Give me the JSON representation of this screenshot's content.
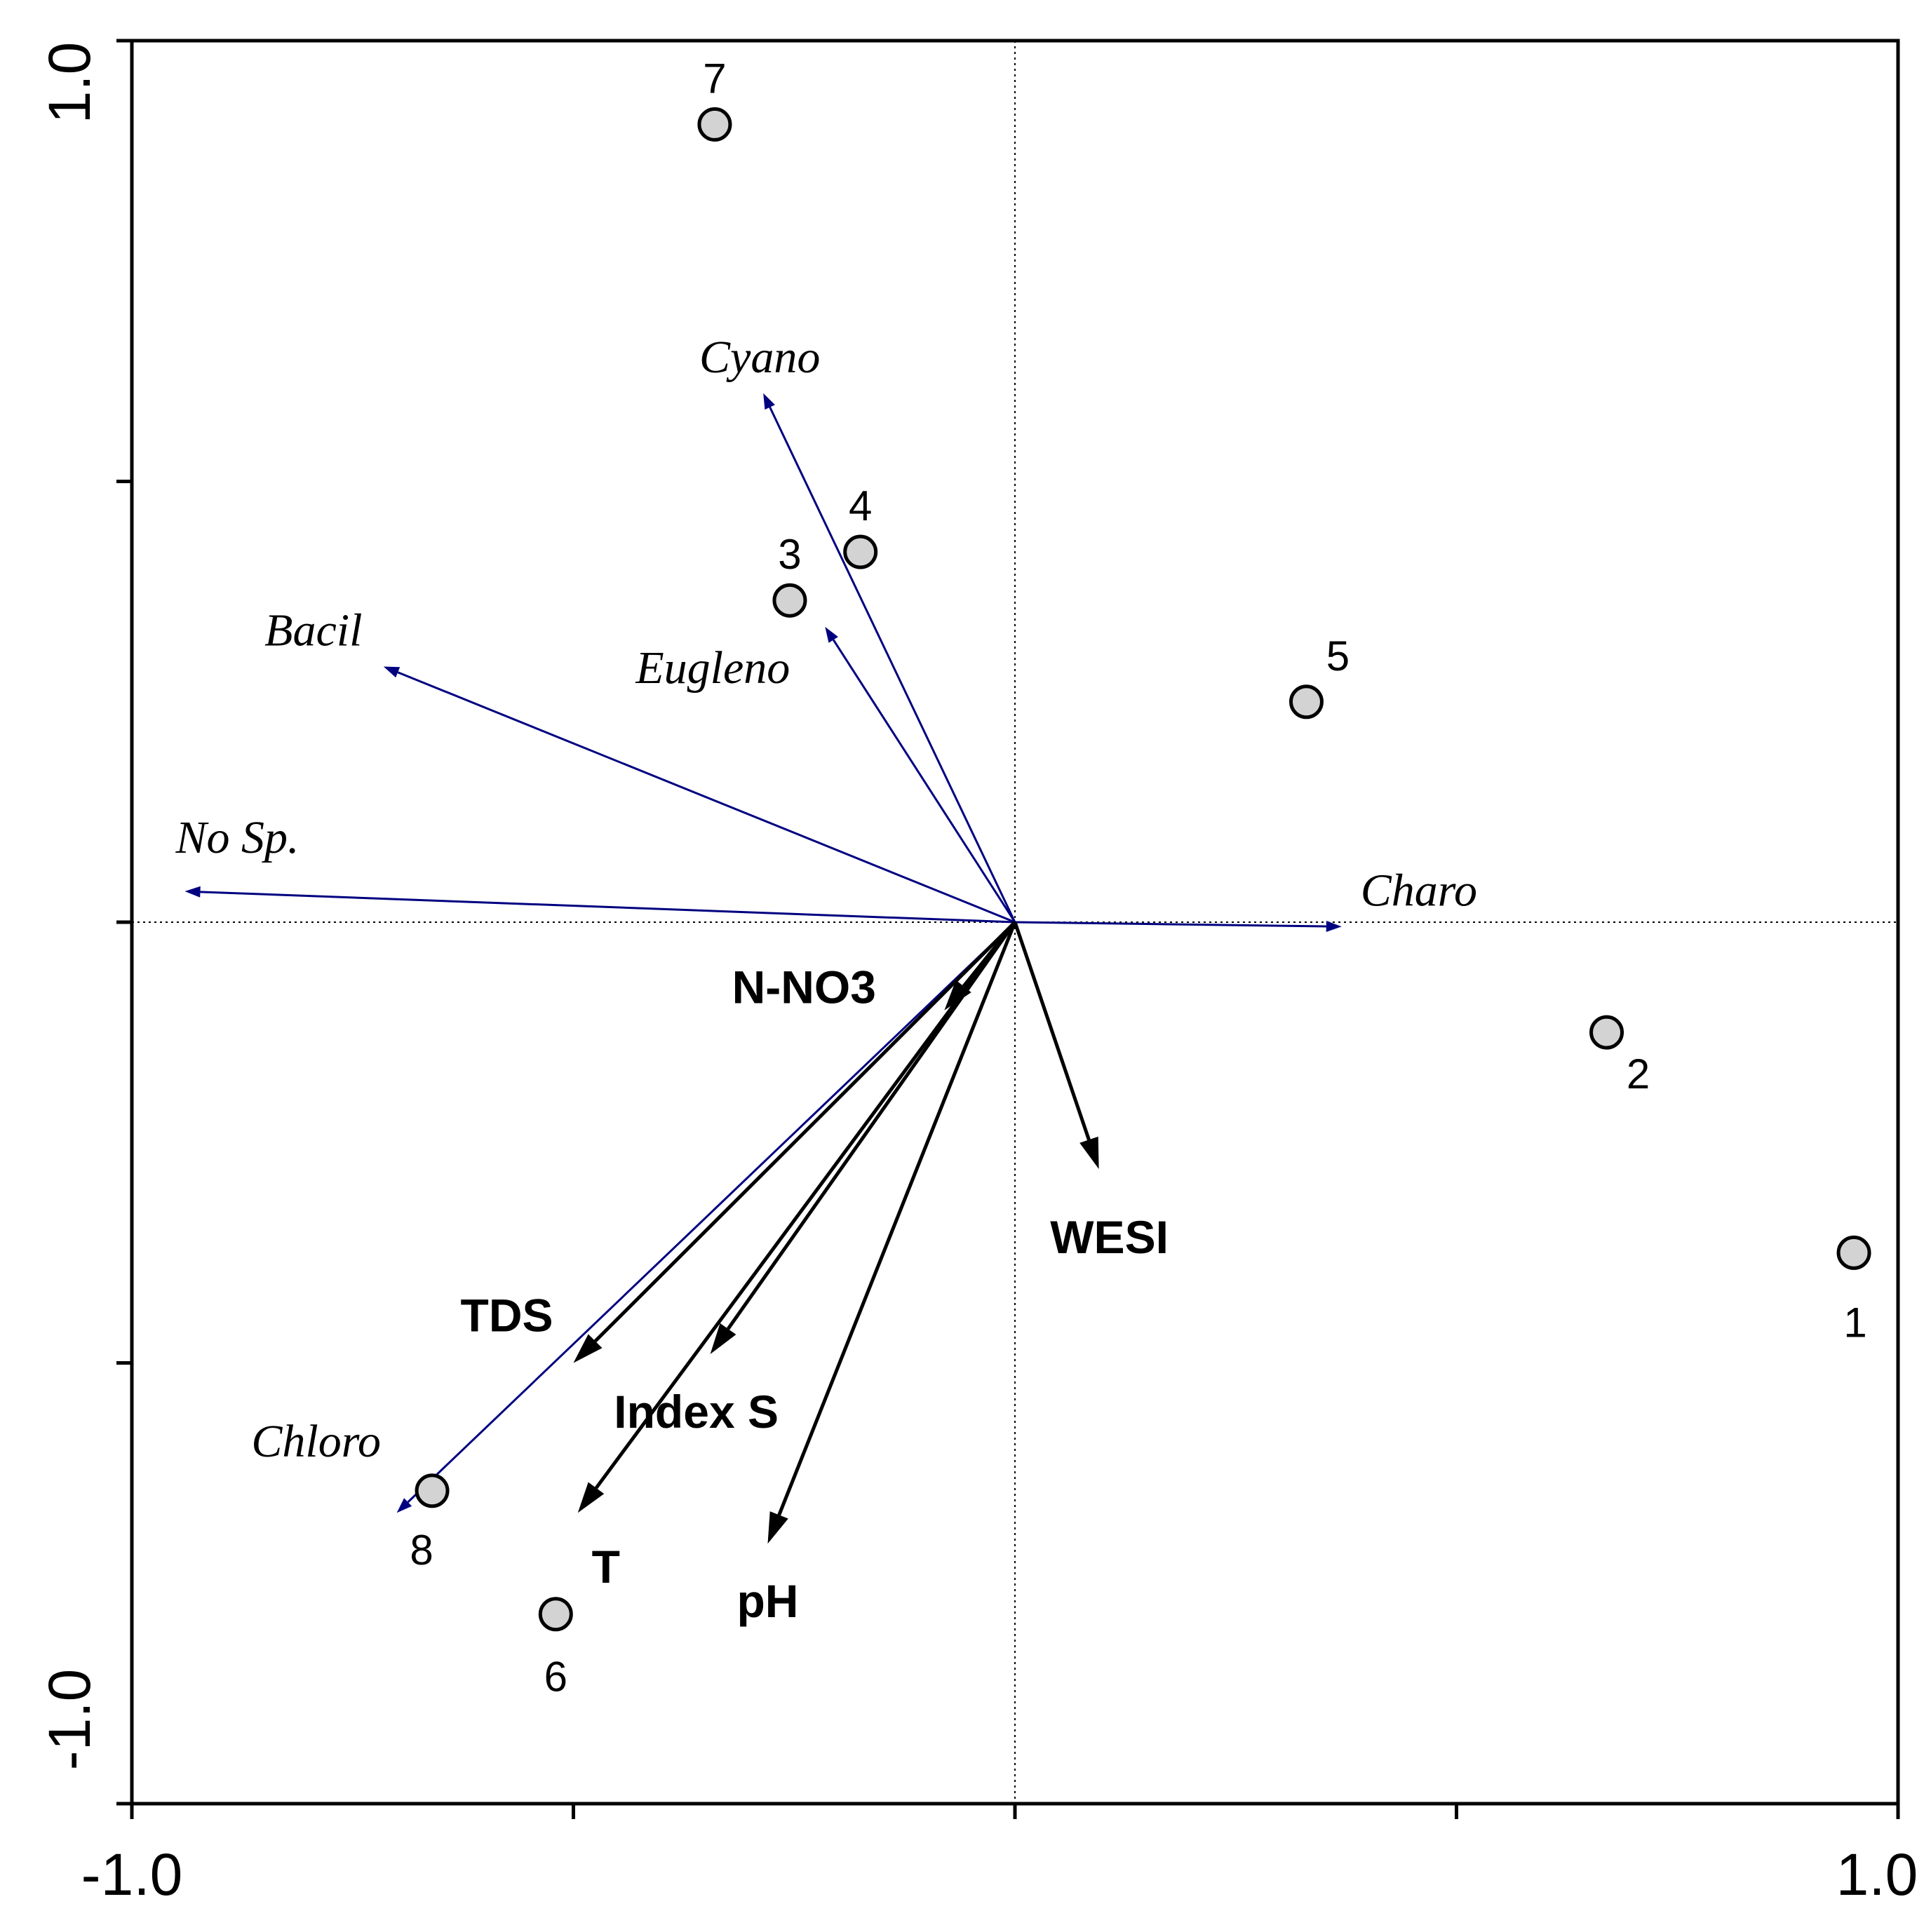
{
  "chart_data": {
    "type": "scatter",
    "subtype": "ordination-biplot",
    "title": "",
    "xlabel": "",
    "ylabel": "",
    "xlim": [
      -1.0,
      1.0
    ],
    "ylim": [
      -1.0,
      1.0
    ],
    "x_tick_labels": [
      "-1.0",
      "1.0"
    ],
    "y_tick_labels": [
      "-1.0",
      "1.0"
    ],
    "x_tick_values": [
      -1.0,
      -0.5,
      0.0,
      0.5,
      1.0
    ],
    "y_tick_values": [
      -1.0,
      -0.5,
      0.0,
      0.5,
      1.0
    ],
    "zero_lines": true,
    "grid": false,
    "samples": [
      {
        "label": "1",
        "x": 0.95,
        "y": -0.375
      },
      {
        "label": "2",
        "x": 0.67,
        "y": -0.125
      },
      {
        "label": "3",
        "x": -0.255,
        "y": 0.365
      },
      {
        "label": "4",
        "x": -0.175,
        "y": 0.42
      },
      {
        "label": "5",
        "x": 0.33,
        "y": 0.25
      },
      {
        "label": "6",
        "x": -0.52,
        "y": -0.785
      },
      {
        "label": "7",
        "x": -0.34,
        "y": 0.905
      },
      {
        "label": "8",
        "x": -0.66,
        "y": -0.645
      }
    ],
    "species_arrows": [
      {
        "label": "Cyano",
        "x": -0.285,
        "y": 0.6
      },
      {
        "label": "Bacil",
        "x": -0.715,
        "y": 0.29
      },
      {
        "label": "Eugleno",
        "x": -0.215,
        "y": 0.335
      },
      {
        "label": "No Sp.",
        "x": -0.94,
        "y": 0.035
      },
      {
        "label": "Charo",
        "x": 0.37,
        "y": -0.005
      },
      {
        "label": "Chloro",
        "x": -0.7,
        "y": -0.67
      }
    ],
    "env_arrows": [
      {
        "label": "N-NO3",
        "x": -0.08,
        "y": -0.1
      },
      {
        "label": "WESI",
        "x": 0.095,
        "y": -0.28
      },
      {
        "label": "TDS",
        "x": -0.5,
        "y": -0.5
      },
      {
        "label": "Index S",
        "x": -0.345,
        "y": -0.49
      },
      {
        "label": "T",
        "x": -0.495,
        "y": -0.67
      },
      {
        "label": "pH",
        "x": -0.28,
        "y": -0.705
      }
    ],
    "colors": {
      "species_arrow": "#000080",
      "env_arrow": "#000000",
      "sample_fill": "#d3d3d3",
      "sample_stroke": "#000000",
      "axis": "#000000"
    }
  }
}
